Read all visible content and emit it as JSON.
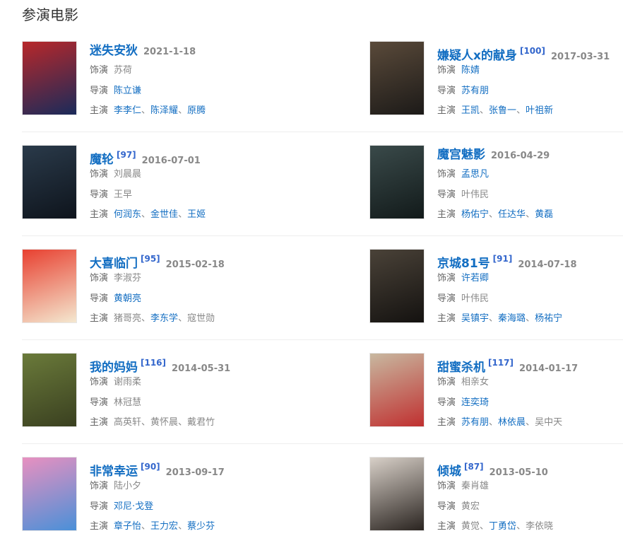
{
  "section_title": "参演电影",
  "labels": {
    "role": "饰演",
    "director": "导演",
    "cast": "主演"
  },
  "colors": {
    "link": "#136ec2",
    "text": "#666666",
    "date": "#888888"
  },
  "movies": [
    {
      "title": "迷失安狄",
      "ref": "",
      "date": "2021-1-18",
      "poster": [
        "#b8282a",
        "#1a2a5a"
      ],
      "role": [
        {
          "name": "苏荷",
          "link": false
        }
      ],
      "director": [
        {
          "name": "陈立谦",
          "link": true
        }
      ],
      "cast": [
        {
          "name": "李李仁",
          "link": true
        },
        {
          "name": "陈泽耀",
          "link": true
        },
        {
          "name": "原腾",
          "link": true
        }
      ]
    },
    {
      "title": "嫌疑人x的献身",
      "ref": "[100]",
      "date": "2017-03-31",
      "poster": [
        "#5a4a3a",
        "#1c1a18"
      ],
      "role": [
        {
          "name": "陈婧",
          "link": true
        }
      ],
      "director": [
        {
          "name": "苏有朋",
          "link": true
        }
      ],
      "cast": [
        {
          "name": "王凯",
          "link": true
        },
        {
          "name": "张鲁一",
          "link": true
        },
        {
          "name": "叶祖新",
          "link": true
        }
      ]
    },
    {
      "title": "魔轮",
      "ref": "[97]",
      "date": "2016-07-01",
      "poster": [
        "#2a3a4a",
        "#0e141c"
      ],
      "role": [
        {
          "name": "刘晨晨",
          "link": false
        }
      ],
      "director": [
        {
          "name": "王早",
          "link": false
        }
      ],
      "cast": [
        {
          "name": "何润东",
          "link": true
        },
        {
          "name": "金世佳",
          "link": true
        },
        {
          "name": "王姬",
          "link": true
        }
      ]
    },
    {
      "title": "魔宫魅影",
      "ref": "",
      "date": "2016-04-29",
      "poster": [
        "#3a4a4a",
        "#121a1a"
      ],
      "role": [
        {
          "name": "孟思凡",
          "link": true
        }
      ],
      "director": [
        {
          "name": "叶伟民",
          "link": false
        }
      ],
      "cast": [
        {
          "name": "杨佑宁",
          "link": true
        },
        {
          "name": "任达华",
          "link": true
        },
        {
          "name": "黄磊",
          "link": true
        }
      ]
    },
    {
      "title": "大喜临门",
      "ref": "[95]",
      "date": "2015-02-18",
      "poster": [
        "#e84030",
        "#f4e8d0"
      ],
      "role": [
        {
          "name": "李淑芬",
          "link": false
        }
      ],
      "director": [
        {
          "name": "黄朝亮",
          "link": true
        }
      ],
      "cast": [
        {
          "name": "猪哥亮",
          "link": false
        },
        {
          "name": "李东学",
          "link": true
        },
        {
          "name": "寇世勋",
          "link": false
        }
      ]
    },
    {
      "title": "京城81号",
      "ref": "[91]",
      "date": "2014-07-18",
      "poster": [
        "#4a4238",
        "#141210"
      ],
      "role": [
        {
          "name": "许若卿",
          "link": true
        }
      ],
      "director": [
        {
          "name": "叶伟民",
          "link": false
        }
      ],
      "cast": [
        {
          "name": "吴镇宇",
          "link": true
        },
        {
          "name": "秦海璐",
          "link": true
        },
        {
          "name": "杨祐宁",
          "link": true
        }
      ]
    },
    {
      "title": "我的妈妈",
      "ref": "[116]",
      "date": "2014-05-31",
      "poster": [
        "#6a7a3a",
        "#3a4020"
      ],
      "role": [
        {
          "name": "谢雨柔",
          "link": false
        }
      ],
      "director": [
        {
          "name": "林冠慧",
          "link": false
        }
      ],
      "cast": [
        {
          "name": "高英轩",
          "link": false
        },
        {
          "name": "黄怀晨",
          "link": false
        },
        {
          "name": "戴君竹",
          "link": false
        }
      ]
    },
    {
      "title": "甜蜜杀机",
      "ref": "[117]",
      "date": "2014-01-17",
      "poster": [
        "#c8b8a0",
        "#c03030"
      ],
      "role": [
        {
          "name": "相亲女",
          "link": false
        }
      ],
      "director": [
        {
          "name": "连奕琦",
          "link": true
        }
      ],
      "cast": [
        {
          "name": "苏有朋",
          "link": true
        },
        {
          "name": "林依晨",
          "link": true
        },
        {
          "name": "吴中天",
          "link": false
        }
      ]
    },
    {
      "title": "非常幸运",
      "ref": "[90]",
      "date": "2013-09-17",
      "poster": [
        "#e890c0",
        "#4a90d8"
      ],
      "role": [
        {
          "name": "陆小夕",
          "link": false
        }
      ],
      "director": [
        {
          "name": "邓尼·戈登",
          "link": true
        }
      ],
      "cast": [
        {
          "name": "章子怡",
          "link": true
        },
        {
          "name": "王力宏",
          "link": true
        },
        {
          "name": "蔡少芬",
          "link": true
        }
      ]
    },
    {
      "title": "倾城",
      "ref": "[87]",
      "date": "2013-05-10",
      "poster": [
        "#d8d0c8",
        "#2a2420"
      ],
      "role": [
        {
          "name": "秦肖雄",
          "link": false
        }
      ],
      "director": [
        {
          "name": "黄宏",
          "link": false
        }
      ],
      "cast": [
        {
          "name": "黄觉",
          "link": false
        },
        {
          "name": "丁勇岱",
          "link": true
        },
        {
          "name": "李依晓",
          "link": false
        }
      ]
    }
  ]
}
